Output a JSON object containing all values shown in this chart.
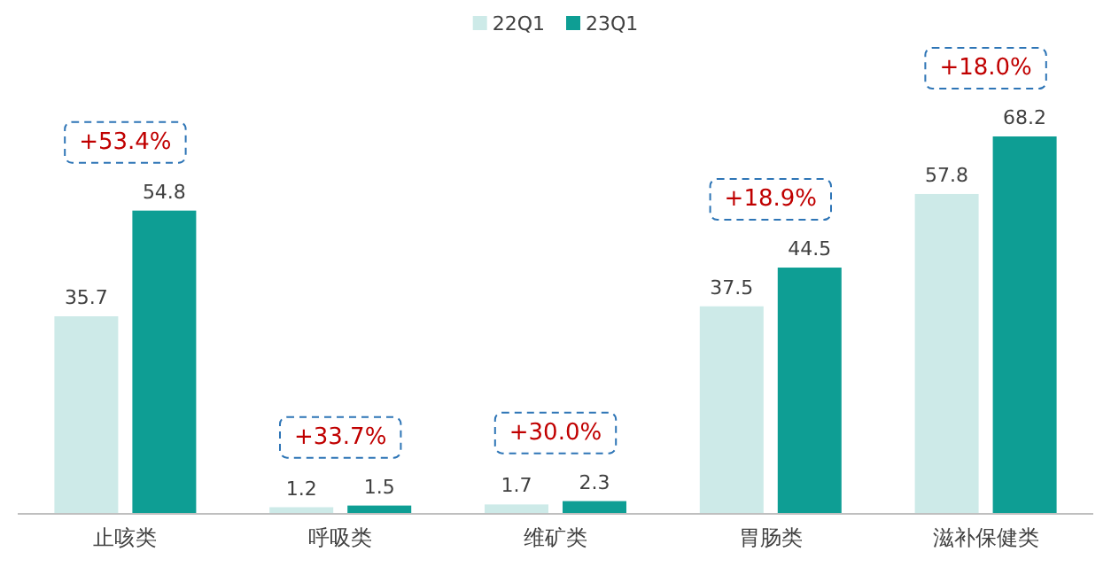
{
  "chart_data": {
    "type": "bar",
    "categories": [
      "止咳类",
      "呼吸类",
      "维矿类",
      "胃肠类",
      "滋补保健类"
    ],
    "series": [
      {
        "name": "22Q1",
        "color": "#cdeae8",
        "values": [
          35.7,
          1.2,
          1.7,
          37.5,
          57.8
        ]
      },
      {
        "name": "23Q1",
        "color": "#0e9e94",
        "values": [
          54.8,
          1.5,
          2.3,
          44.5,
          68.2
        ]
      }
    ],
    "data_labels": true,
    "legend": "top",
    "tick_labels": "x",
    "annotations": [
      "+53.4%",
      "+33.7%",
      "+30.0%",
      "+18.9%",
      "+18.0%"
    ]
  }
}
